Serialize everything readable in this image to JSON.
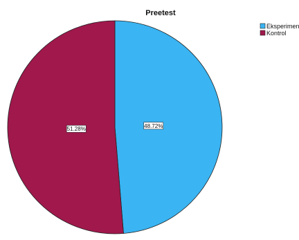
{
  "chart_data": {
    "type": "pie",
    "title": "Preetest",
    "categories": [
      "Eksperimen",
      "Kontrol"
    ],
    "values": [
      48.72,
      51.28
    ],
    "data_labels": [
      "48.72%",
      "51.28%"
    ],
    "colors": [
      "#3ab4f2",
      "#a0184c"
    ],
    "legend": {
      "placement": "top-right",
      "entries": [
        "Eksperimen",
        "Kontrol"
      ]
    },
    "start_angle": "12 o'clock",
    "direction": "clockwise"
  }
}
